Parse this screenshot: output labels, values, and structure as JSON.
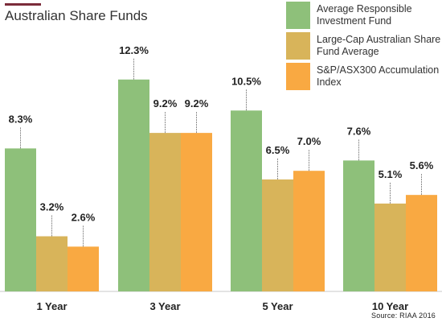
{
  "chart_data": {
    "type": "bar",
    "title": "Australian Share Funds",
    "categories": [
      "1 Year",
      "3 Year",
      "5 Year",
      "10 Year"
    ],
    "series": [
      {
        "name": "Average Responsible Investment Fund",
        "values": [
          8.3,
          12.3,
          10.5,
          7.6
        ],
        "labels": [
          "8.3%",
          "12.3%",
          "10.5%",
          "7.6%"
        ],
        "color": "#8ec07a"
      },
      {
        "name": "Large-Cap Australian Share Fund Average",
        "values": [
          3.2,
          9.2,
          6.5,
          5.1
        ],
        "labels": [
          "3.2%",
          "9.2%",
          "6.5%",
          "5.1%"
        ],
        "color": "#d8b45a"
      },
      {
        "name": "S&P/ASX300 Accumulation Index",
        "values": [
          2.6,
          9.2,
          7.0,
          5.6
        ],
        "labels": [
          "2.6%",
          "9.2%",
          "7.0%",
          "5.6%"
        ],
        "color": "#f9a942"
      }
    ],
    "legend_position": "top-right",
    "grid": false,
    "source": "Source: RIAA 2016"
  }
}
